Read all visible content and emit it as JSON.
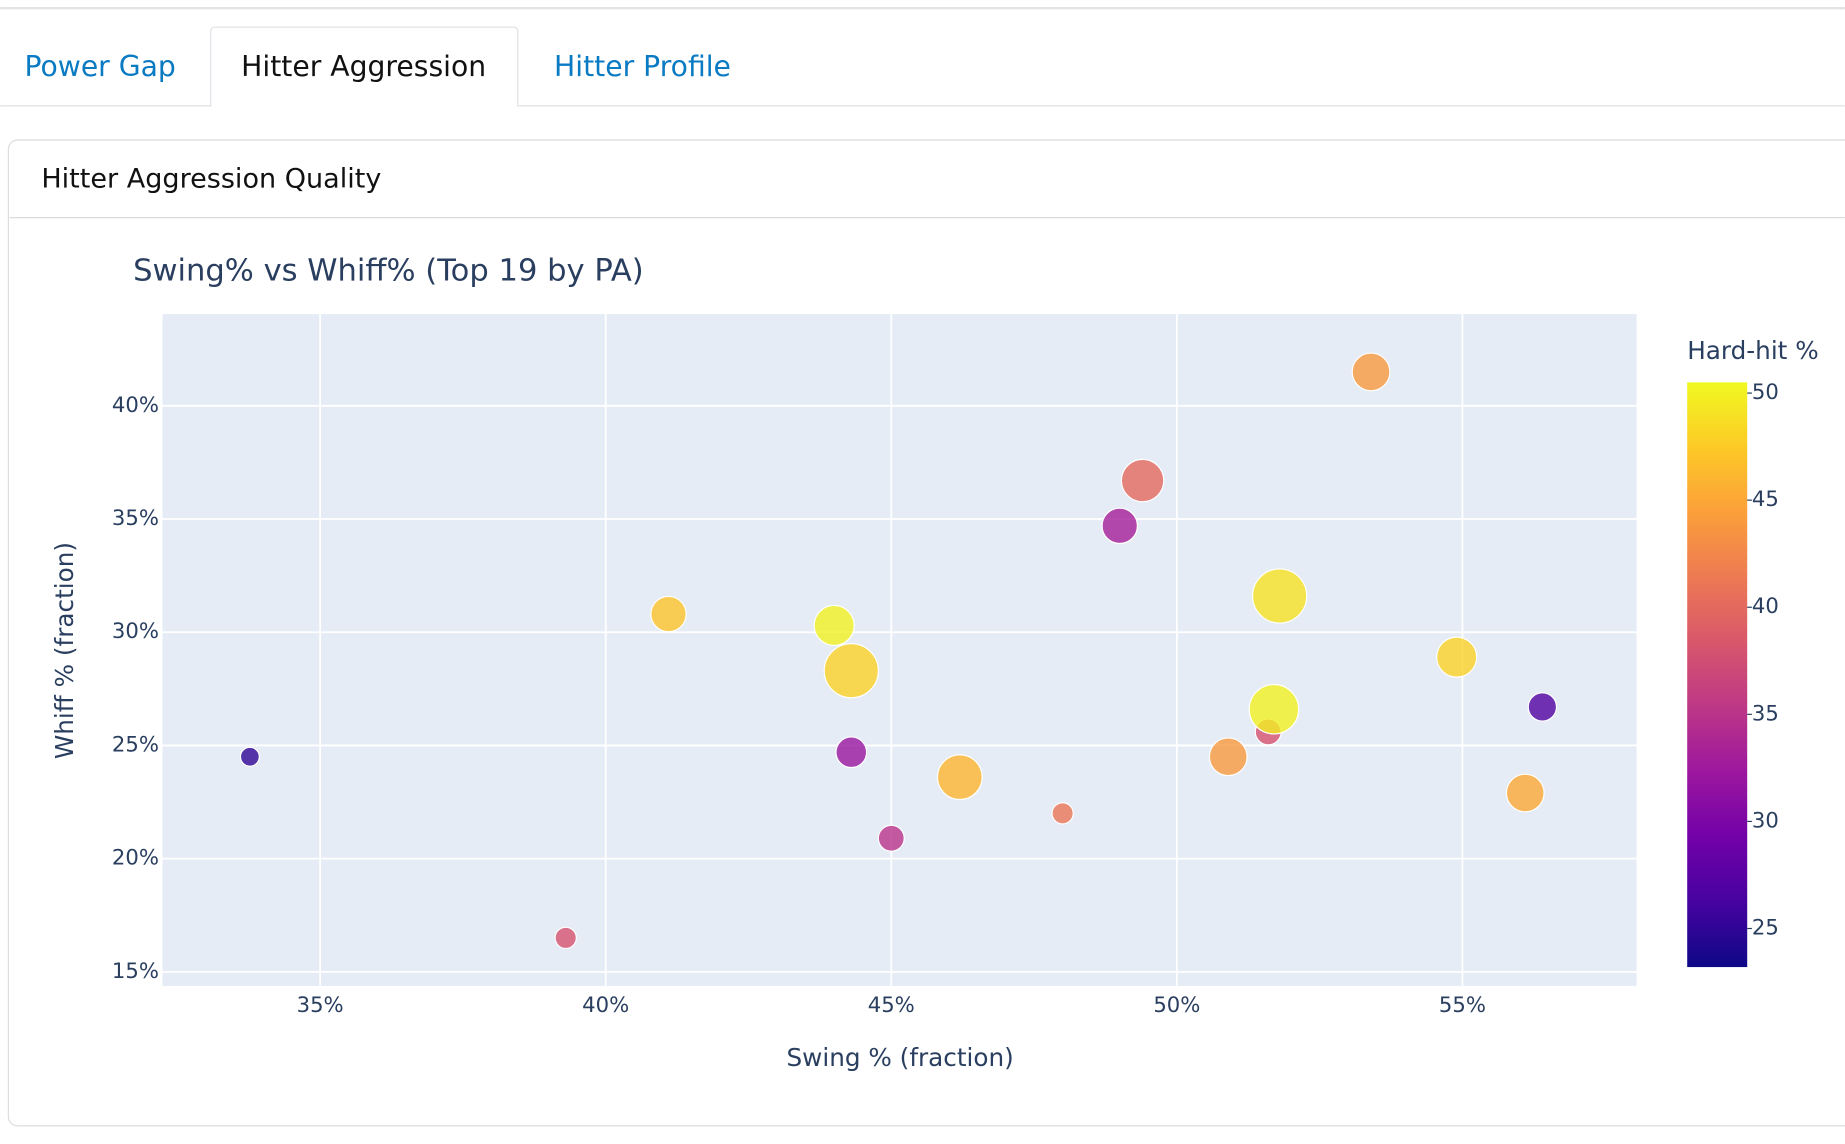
{
  "tabs": [
    "Power Gap",
    "Hitter Aggression",
    "Hitter Profile"
  ],
  "card_title": "Hitter Aggression Quality",
  "chart_data": {
    "type": "scatter",
    "title": "Swing% vs Whiff% (Top 19 by PA)",
    "x_label": "Swing % (fraction)",
    "y_label": "Whiff % (fraction)",
    "x": [
      0.3377,
      0.393,
      0.411,
      0.44,
      0.443,
      0.443,
      0.45,
      0.462,
      0.48,
      0.49,
      0.494,
      0.509,
      0.516,
      0.517,
      0.518,
      0.534,
      0.549,
      0.561,
      0.564
    ],
    "y": [
      0.245,
      0.165,
      0.308,
      0.303,
      0.283,
      0.247,
      0.209,
      0.236,
      0.22,
      0.347,
      0.367,
      0.245,
      0.256,
      0.266,
      0.316,
      0.415,
      0.289,
      0.229,
      0.267
    ],
    "size": [
      8,
      9,
      15,
      17,
      23,
      13,
      11,
      19,
      9,
      15,
      18,
      16,
      11,
      21,
      23,
      16,
      17,
      16,
      12
    ],
    "color_values": [
      25,
      38,
      47,
      50,
      48,
      32,
      35,
      46,
      41,
      33,
      40,
      44,
      38,
      50,
      49,
      44,
      48,
      45,
      27
    ],
    "colorscale": "plasma",
    "xlim": [
      0.3224,
      0.5805
    ],
    "ylim": [
      0.1438,
      0.4405
    ],
    "xticks": [
      {
        "value": 0.35,
        "label": "35%"
      },
      {
        "value": 0.4,
        "label": "40%"
      },
      {
        "value": 0.45,
        "label": "45%"
      },
      {
        "value": 0.5,
        "label": "50%"
      },
      {
        "value": 0.55,
        "label": "55%"
      }
    ],
    "yticks": [
      {
        "value": 0.15,
        "label": "15%"
      },
      {
        "value": 0.2,
        "label": "20%"
      },
      {
        "value": 0.25,
        "label": "25%"
      },
      {
        "value": 0.3,
        "label": "30%"
      },
      {
        "value": 0.35,
        "label": "35%"
      },
      {
        "value": 0.4,
        "label": "40%"
      }
    ],
    "grid": true,
    "colorbar": {
      "title": "Hard-hit %",
      "range": [
        23.2,
        50.5
      ],
      "ticks": [
        25,
        30,
        35,
        40,
        45,
        50
      ]
    }
  }
}
